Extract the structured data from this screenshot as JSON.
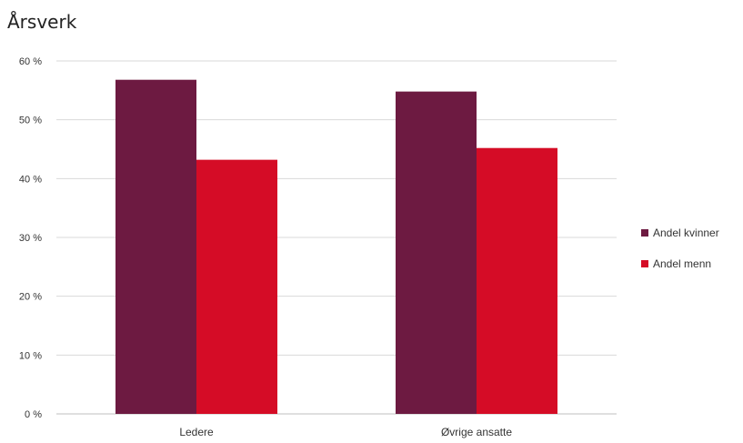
{
  "chart_data": {
    "type": "bar",
    "title": "Årsverk",
    "categories": [
      "Ledere",
      "Øvrige ansatte"
    ],
    "series": [
      {
        "name": "Andel kvinner",
        "values": [
          56.8,
          54.8
        ],
        "color": "#6d1a41"
      },
      {
        "name": "Andel menn",
        "values": [
          43.2,
          45.2
        ],
        "color": "#d50c26"
      }
    ],
    "ylim": [
      0,
      60
    ],
    "yticks": [
      "0 %",
      "10 %",
      "20 %",
      "30 %",
      "40 %",
      "50 %",
      "60 %"
    ],
    "xlabel": "",
    "ylabel": "",
    "grid": true,
    "legend_position": "right"
  }
}
